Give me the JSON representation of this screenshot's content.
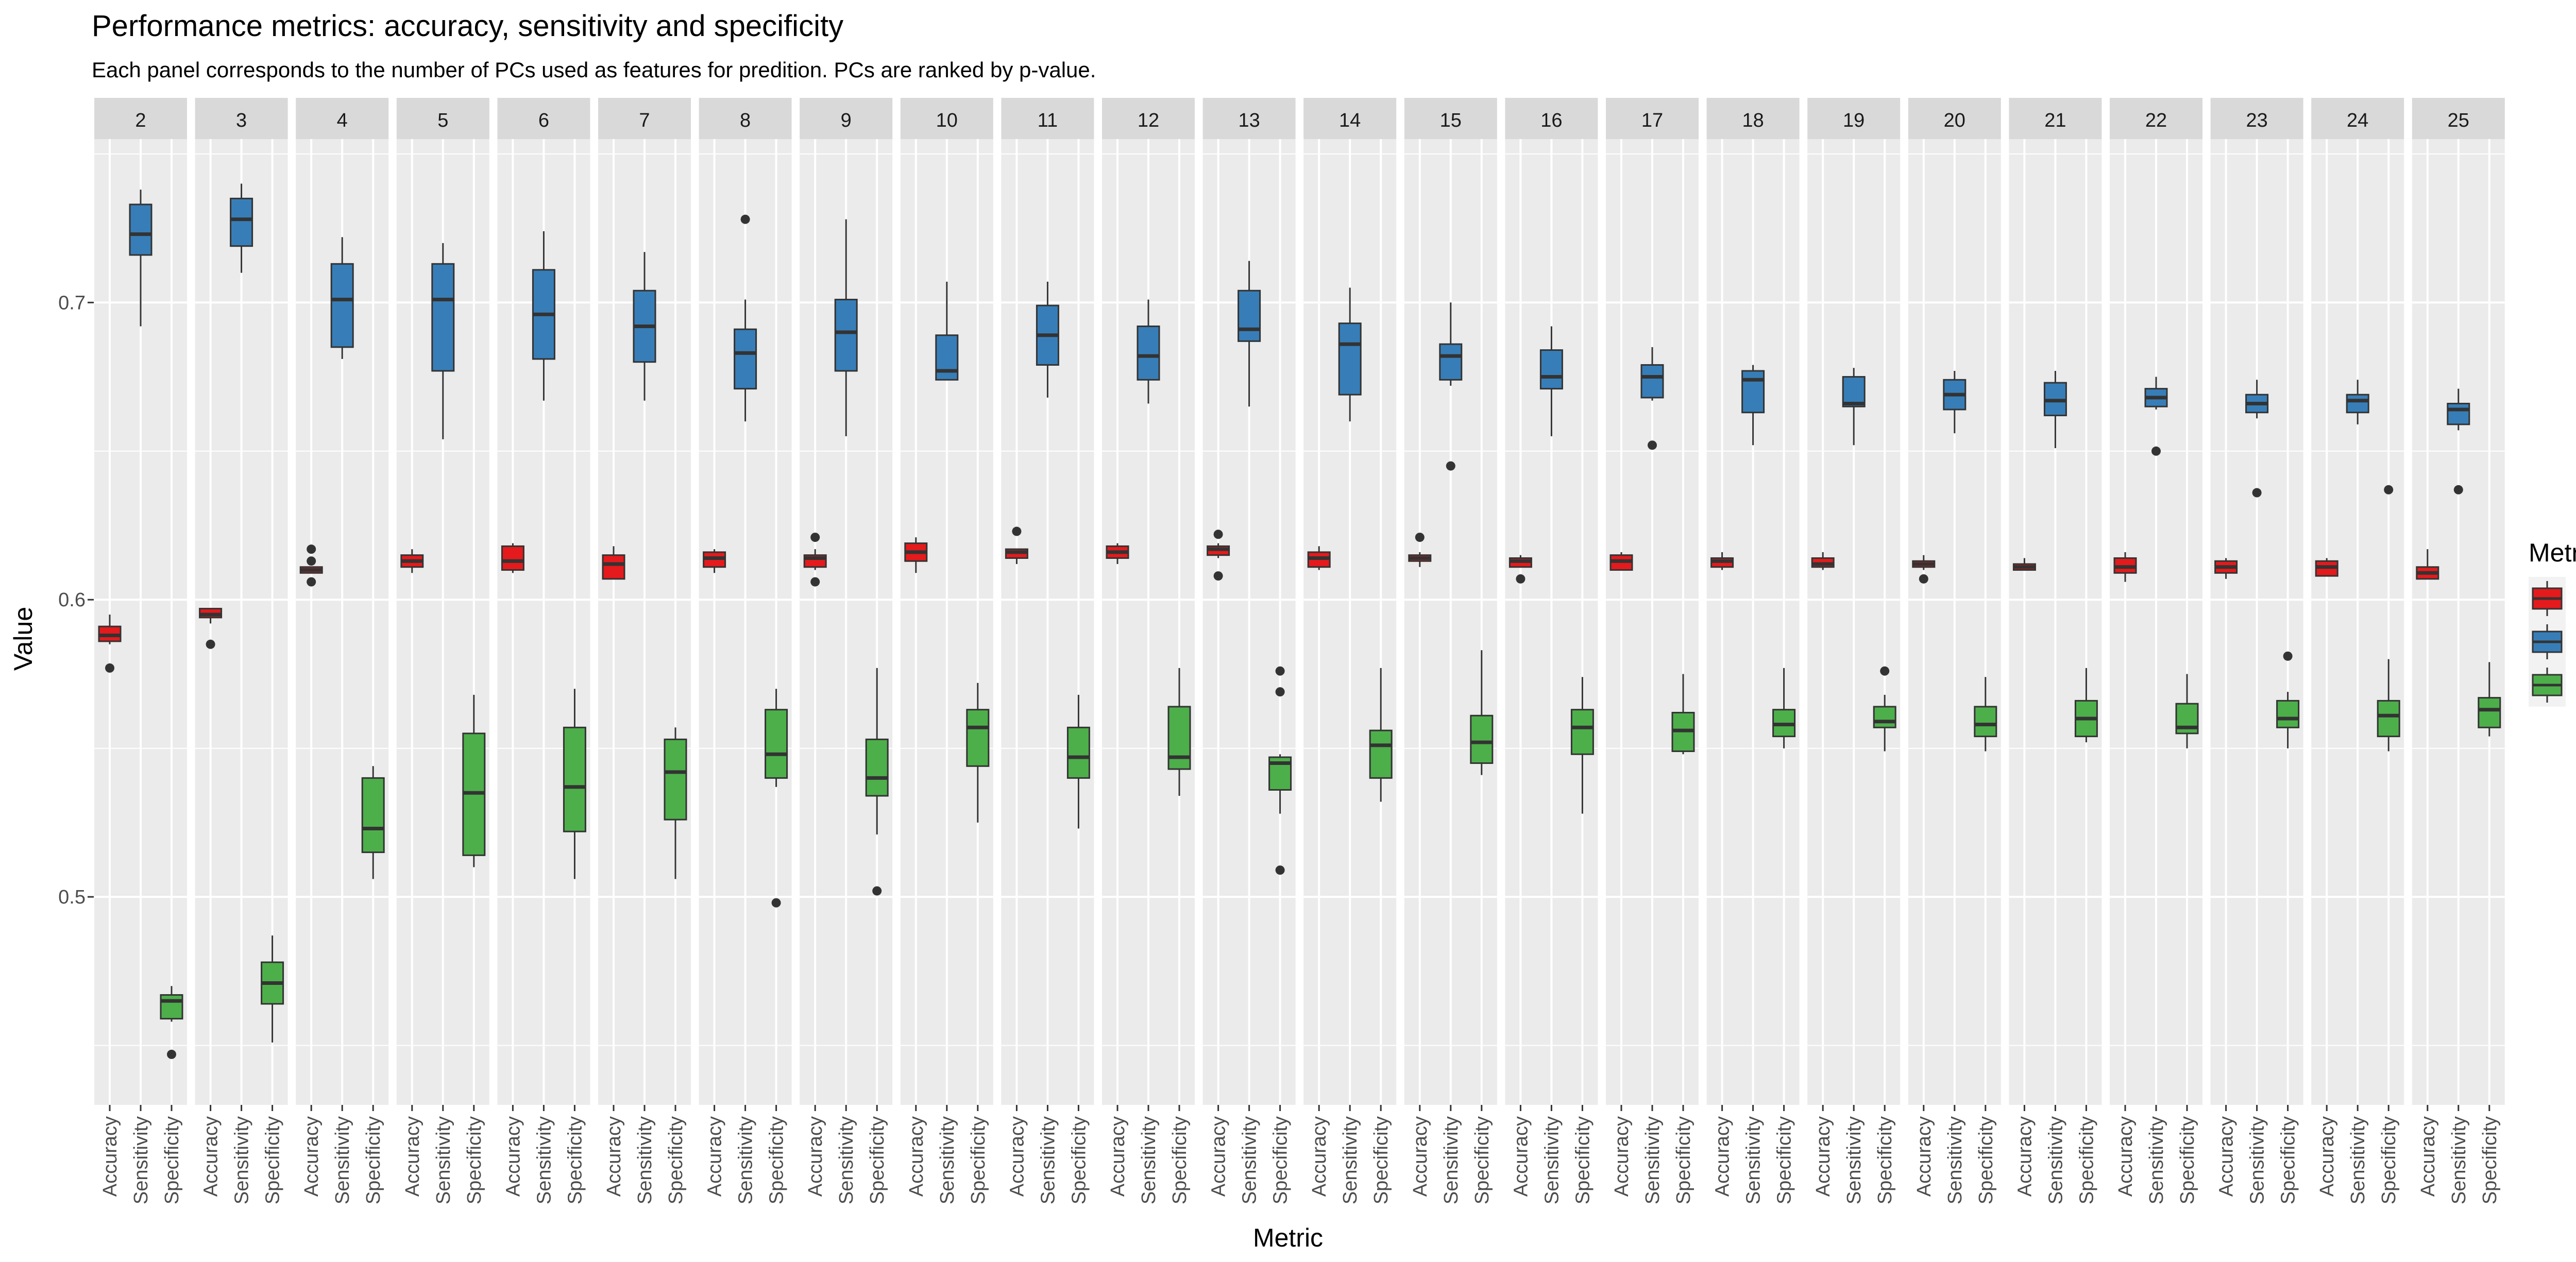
{
  "chart_data": {
    "type": "box",
    "title": "Performance metrics: accuracy, sensitivity and specificity",
    "subtitle": "Each panel corresponds to the number of PCs used as features for predition. PCs are ranked by p-value.",
    "xlabel": "Metric",
    "ylabel": "Value",
    "ylim": [
      0.43,
      0.755
    ],
    "yticks": [
      0.5,
      0.6,
      0.7
    ],
    "ytick_labels": [
      "0.5",
      "0.6",
      "0.7"
    ],
    "categories": [
      "Accuracy",
      "Sensitivity",
      "Specificity"
    ],
    "legend": {
      "title": "Metric",
      "position": "right",
      "entries": [
        "Accuracy",
        "Sensitivity",
        "Specificity"
      ]
    },
    "colors": {
      "Accuracy": "#E41A1C",
      "Sensitivity": "#377EB8",
      "Specificity": "#4DAF4A",
      "panel_bg": "#EBEBEB",
      "strip_bg": "#D9D9D9",
      "grid": "#FFFFFF"
    },
    "grid": true,
    "box_stats_order": [
      "lower_whisker",
      "q1",
      "median",
      "q3",
      "upper_whisker"
    ],
    "panels": [
      {
        "label": "2",
        "Accuracy": {
          "stats": [
            0.585,
            0.586,
            0.588,
            0.591,
            0.595
          ],
          "outliers": [
            0.577
          ]
        },
        "Sensitivity": {
          "stats": [
            0.692,
            0.716,
            0.723,
            0.733,
            0.738
          ],
          "outliers": []
        },
        "Specificity": {
          "stats": [
            0.458,
            0.459,
            0.465,
            0.467,
            0.47
          ],
          "outliers": [
            0.447
          ]
        }
      },
      {
        "label": "3",
        "Accuracy": {
          "stats": [
            0.592,
            0.594,
            0.595,
            0.597,
            0.597
          ],
          "outliers": [
            0.585
          ]
        },
        "Sensitivity": {
          "stats": [
            0.71,
            0.719,
            0.728,
            0.735,
            0.74
          ],
          "outliers": []
        },
        "Specificity": {
          "stats": [
            0.451,
            0.464,
            0.471,
            0.478,
            0.487
          ],
          "outliers": []
        }
      },
      {
        "label": "4",
        "Accuracy": {
          "stats": [
            0.609,
            0.609,
            0.61,
            0.611,
            0.611
          ],
          "outliers": [
            0.617,
            0.613,
            0.606
          ]
        },
        "Sensitivity": {
          "stats": [
            0.681,
            0.685,
            0.701,
            0.713,
            0.722
          ],
          "outliers": []
        },
        "Specificity": {
          "stats": [
            0.506,
            0.515,
            0.523,
            0.54,
            0.544
          ],
          "outliers": []
        }
      },
      {
        "label": "5",
        "Accuracy": {
          "stats": [
            0.609,
            0.611,
            0.613,
            0.615,
            0.617
          ],
          "outliers": []
        },
        "Sensitivity": {
          "stats": [
            0.654,
            0.677,
            0.701,
            0.713,
            0.72
          ],
          "outliers": []
        },
        "Specificity": {
          "stats": [
            0.51,
            0.514,
            0.535,
            0.555,
            0.568
          ],
          "outliers": []
        }
      },
      {
        "label": "6",
        "Accuracy": {
          "stats": [
            0.609,
            0.61,
            0.613,
            0.618,
            0.619
          ],
          "outliers": []
        },
        "Sensitivity": {
          "stats": [
            0.667,
            0.681,
            0.696,
            0.711,
            0.724
          ],
          "outliers": []
        },
        "Specificity": {
          "stats": [
            0.506,
            0.522,
            0.537,
            0.557,
            0.57
          ],
          "outliers": []
        }
      },
      {
        "label": "7",
        "Accuracy": {
          "stats": [
            0.607,
            0.607,
            0.612,
            0.615,
            0.618
          ],
          "outliers": []
        },
        "Sensitivity": {
          "stats": [
            0.667,
            0.68,
            0.692,
            0.704,
            0.717
          ],
          "outliers": []
        },
        "Specificity": {
          "stats": [
            0.506,
            0.526,
            0.542,
            0.553,
            0.557
          ],
          "outliers": []
        }
      },
      {
        "label": "8",
        "Accuracy": {
          "stats": [
            0.609,
            0.611,
            0.614,
            0.616,
            0.617
          ],
          "outliers": []
        },
        "Sensitivity": {
          "stats": [
            0.66,
            0.671,
            0.683,
            0.691,
            0.701
          ],
          "outliers": [
            0.728
          ]
        },
        "Specificity": {
          "stats": [
            0.537,
            0.54,
            0.548,
            0.563,
            0.57
          ],
          "outliers": [
            0.498
          ]
        }
      },
      {
        "label": "9",
        "Accuracy": {
          "stats": [
            0.61,
            0.611,
            0.614,
            0.615,
            0.617
          ],
          "outliers": [
            0.621,
            0.606
          ]
        },
        "Sensitivity": {
          "stats": [
            0.655,
            0.677,
            0.69,
            0.701,
            0.728
          ],
          "outliers": []
        },
        "Specificity": {
          "stats": [
            0.521,
            0.534,
            0.54,
            0.553,
            0.577
          ],
          "outliers": [
            0.502
          ]
        }
      },
      {
        "label": "10",
        "Accuracy": {
          "stats": [
            0.609,
            0.613,
            0.616,
            0.619,
            0.621
          ],
          "outliers": []
        },
        "Sensitivity": {
          "stats": [
            0.674,
            0.674,
            0.677,
            0.689,
            0.707
          ],
          "outliers": []
        },
        "Specificity": {
          "stats": [
            0.525,
            0.544,
            0.557,
            0.563,
            0.572
          ],
          "outliers": []
        }
      },
      {
        "label": "11",
        "Accuracy": {
          "stats": [
            0.612,
            0.614,
            0.616,
            0.617,
            0.617
          ],
          "outliers": [
            0.623
          ]
        },
        "Sensitivity": {
          "stats": [
            0.668,
            0.679,
            0.689,
            0.699,
            0.707
          ],
          "outliers": []
        },
        "Specificity": {
          "stats": [
            0.523,
            0.54,
            0.547,
            0.557,
            0.568
          ],
          "outliers": []
        }
      },
      {
        "label": "12",
        "Accuracy": {
          "stats": [
            0.612,
            0.614,
            0.616,
            0.618,
            0.619
          ],
          "outliers": []
        },
        "Sensitivity": {
          "stats": [
            0.666,
            0.674,
            0.682,
            0.692,
            0.701
          ],
          "outliers": []
        },
        "Specificity": {
          "stats": [
            0.534,
            0.543,
            0.547,
            0.564,
            0.577
          ],
          "outliers": []
        }
      },
      {
        "label": "13",
        "Accuracy": {
          "stats": [
            0.614,
            0.615,
            0.617,
            0.618,
            0.619
          ],
          "outliers": [
            0.622,
            0.608
          ]
        },
        "Sensitivity": {
          "stats": [
            0.665,
            0.687,
            0.691,
            0.704,
            0.714
          ],
          "outliers": []
        },
        "Specificity": {
          "stats": [
            0.528,
            0.536,
            0.545,
            0.547,
            0.548
          ],
          "outliers": [
            0.576,
            0.569,
            0.509
          ]
        }
      },
      {
        "label": "14",
        "Accuracy": {
          "stats": [
            0.61,
            0.611,
            0.614,
            0.616,
            0.618
          ],
          "outliers": []
        },
        "Sensitivity": {
          "stats": [
            0.66,
            0.669,
            0.686,
            0.693,
            0.705
          ],
          "outliers": []
        },
        "Specificity": {
          "stats": [
            0.532,
            0.54,
            0.551,
            0.556,
            0.577
          ],
          "outliers": []
        }
      },
      {
        "label": "15",
        "Accuracy": {
          "stats": [
            0.611,
            0.613,
            0.614,
            0.615,
            0.616
          ],
          "outliers": [
            0.621
          ]
        },
        "Sensitivity": {
          "stats": [
            0.672,
            0.674,
            0.682,
            0.686,
            0.7
          ],
          "outliers": [
            0.645
          ]
        },
        "Specificity": {
          "stats": [
            0.541,
            0.545,
            0.552,
            0.561,
            0.583
          ],
          "outliers": []
        }
      },
      {
        "label": "16",
        "Accuracy": {
          "stats": [
            0.611,
            0.611,
            0.613,
            0.614,
            0.615
          ],
          "outliers": [
            0.607
          ]
        },
        "Sensitivity": {
          "stats": [
            0.655,
            0.671,
            0.675,
            0.684,
            0.692
          ],
          "outliers": []
        },
        "Specificity": {
          "stats": [
            0.528,
            0.548,
            0.557,
            0.563,
            0.574
          ],
          "outliers": []
        }
      },
      {
        "label": "17",
        "Accuracy": {
          "stats": [
            0.61,
            0.61,
            0.613,
            0.615,
            0.616
          ],
          "outliers": []
        },
        "Sensitivity": {
          "stats": [
            0.667,
            0.668,
            0.675,
            0.679,
            0.685
          ],
          "outliers": [
            0.652
          ]
        },
        "Specificity": {
          "stats": [
            0.548,
            0.549,
            0.556,
            0.562,
            0.575
          ],
          "outliers": []
        }
      },
      {
        "label": "18",
        "Accuracy": {
          "stats": [
            0.61,
            0.611,
            0.613,
            0.614,
            0.616
          ],
          "outliers": []
        },
        "Sensitivity": {
          "stats": [
            0.652,
            0.663,
            0.674,
            0.677,
            0.679
          ],
          "outliers": []
        },
        "Specificity": {
          "stats": [
            0.55,
            0.554,
            0.558,
            0.563,
            0.577
          ],
          "outliers": []
        }
      },
      {
        "label": "19",
        "Accuracy": {
          "stats": [
            0.61,
            0.611,
            0.612,
            0.614,
            0.616
          ],
          "outliers": []
        },
        "Sensitivity": {
          "stats": [
            0.652,
            0.665,
            0.666,
            0.675,
            0.678
          ],
          "outliers": []
        },
        "Specificity": {
          "stats": [
            0.549,
            0.557,
            0.559,
            0.564,
            0.568
          ],
          "outliers": [
            0.576
          ]
        }
      },
      {
        "label": "20",
        "Accuracy": {
          "stats": [
            0.61,
            0.611,
            0.612,
            0.613,
            0.615
          ],
          "outliers": [
            0.607
          ]
        },
        "Sensitivity": {
          "stats": [
            0.656,
            0.664,
            0.669,
            0.674,
            0.677
          ],
          "outliers": []
        },
        "Specificity": {
          "stats": [
            0.549,
            0.554,
            0.558,
            0.564,
            0.574
          ],
          "outliers": []
        }
      },
      {
        "label": "21",
        "Accuracy": {
          "stats": [
            0.61,
            0.61,
            0.611,
            0.612,
            0.614
          ],
          "outliers": []
        },
        "Sensitivity": {
          "stats": [
            0.651,
            0.662,
            0.667,
            0.673,
            0.677
          ],
          "outliers": []
        },
        "Specificity": {
          "stats": [
            0.552,
            0.554,
            0.56,
            0.566,
            0.577
          ],
          "outliers": []
        }
      },
      {
        "label": "22",
        "Accuracy": {
          "stats": [
            0.606,
            0.609,
            0.611,
            0.614,
            0.616
          ],
          "outliers": []
        },
        "Sensitivity": {
          "stats": [
            0.664,
            0.665,
            0.668,
            0.671,
            0.675
          ],
          "outliers": [
            0.65
          ]
        },
        "Specificity": {
          "stats": [
            0.55,
            0.555,
            0.557,
            0.565,
            0.575
          ],
          "outliers": []
        }
      },
      {
        "label": "23",
        "Accuracy": {
          "stats": [
            0.607,
            0.609,
            0.611,
            0.613,
            0.614
          ],
          "outliers": []
        },
        "Sensitivity": {
          "stats": [
            0.661,
            0.663,
            0.666,
            0.669,
            0.674
          ],
          "outliers": [
            0.636
          ]
        },
        "Specificity": {
          "stats": [
            0.55,
            0.557,
            0.56,
            0.566,
            0.569
          ],
          "outliers": [
            0.581
          ]
        }
      },
      {
        "label": "24",
        "Accuracy": {
          "stats": [
            0.608,
            0.608,
            0.611,
            0.613,
            0.614
          ],
          "outliers": []
        },
        "Sensitivity": {
          "stats": [
            0.659,
            0.663,
            0.667,
            0.669,
            0.674
          ],
          "outliers": []
        },
        "Specificity": {
          "stats": [
            0.549,
            0.554,
            0.561,
            0.566,
            0.58
          ],
          "outliers": [
            0.637
          ]
        }
      },
      {
        "label": "25",
        "Accuracy": {
          "stats": [
            0.607,
            0.607,
            0.609,
            0.611,
            0.617
          ],
          "outliers": []
        },
        "Sensitivity": {
          "stats": [
            0.657,
            0.659,
            0.664,
            0.666,
            0.671
          ],
          "outliers": [
            0.637
          ]
        },
        "Specificity": {
          "stats": [
            0.554,
            0.557,
            0.563,
            0.567,
            0.579
          ],
          "outliers": []
        }
      }
    ]
  }
}
